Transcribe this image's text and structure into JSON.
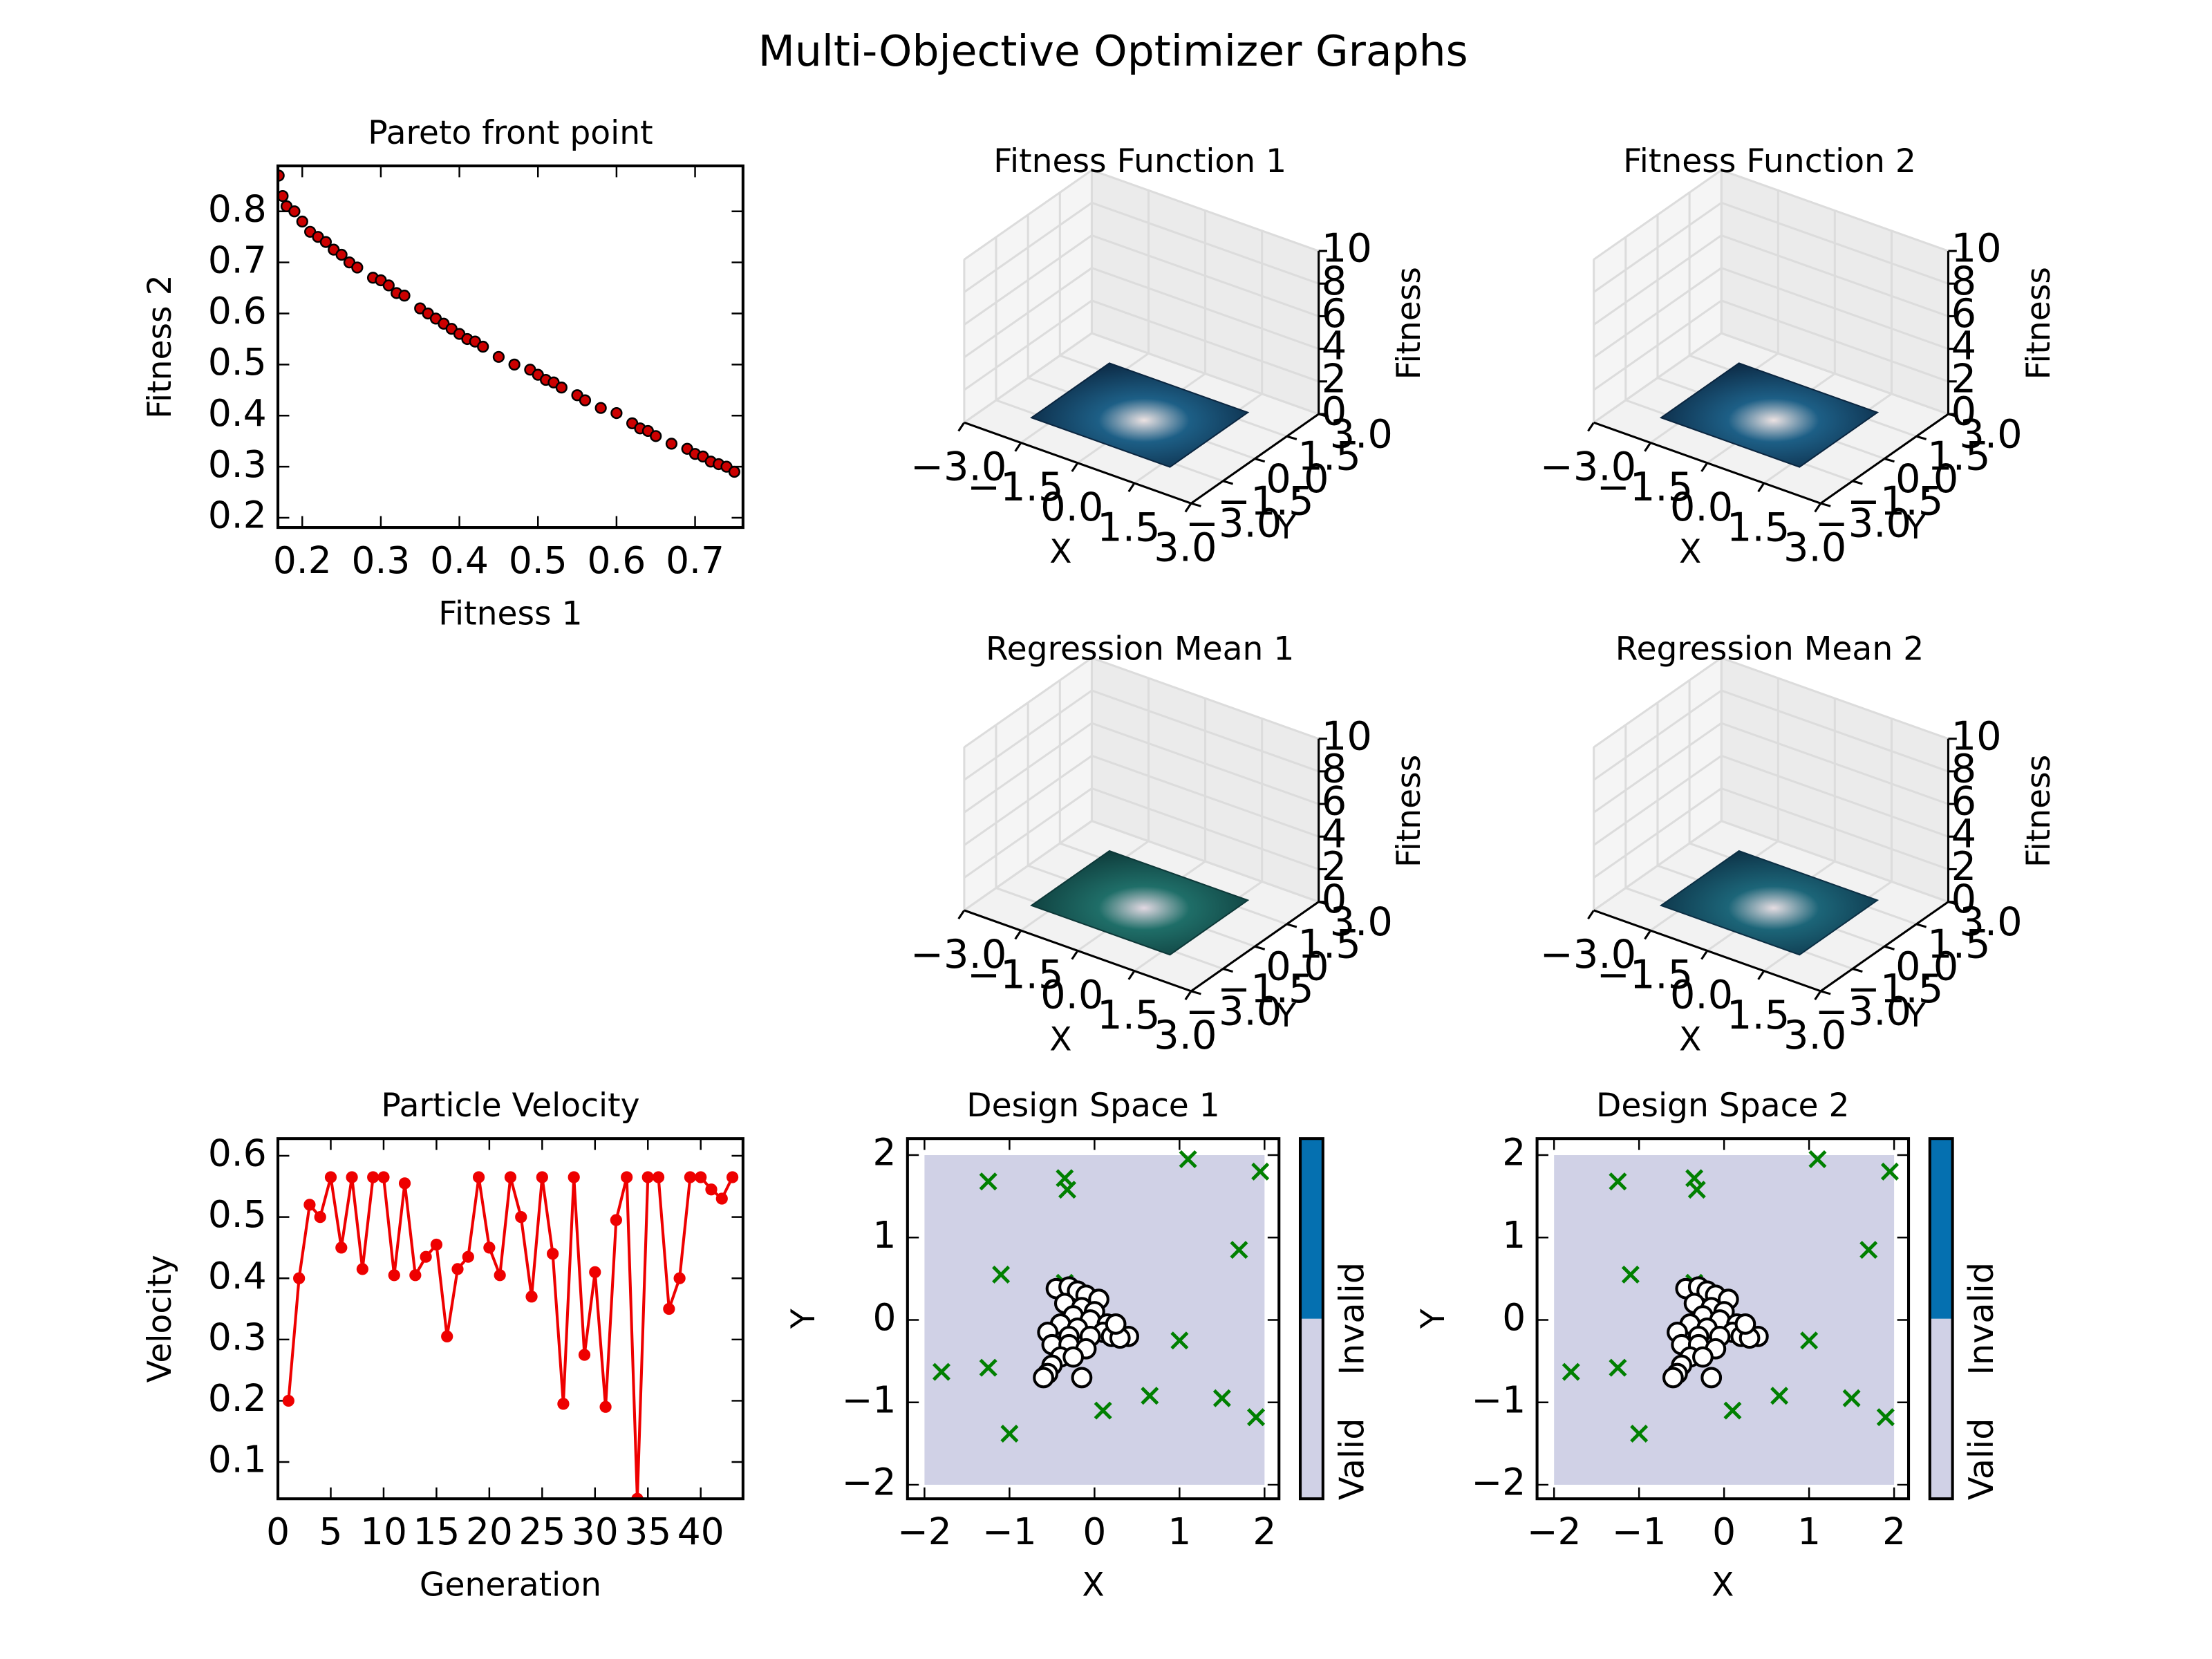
{
  "title": "Multi-Objective Optimizer Graphs",
  "chart_data": [
    {
      "type": "scatter",
      "title": "Pareto front point",
      "xlabel": "Fitness 1",
      "ylabel": "Fitness 2",
      "color": "#cc0000",
      "x": [
        0.17,
        0.175,
        0.18,
        0.19,
        0.2,
        0.21,
        0.22,
        0.23,
        0.24,
        0.25,
        0.26,
        0.27,
        0.29,
        0.3,
        0.31,
        0.32,
        0.33,
        0.35,
        0.36,
        0.37,
        0.38,
        0.39,
        0.4,
        0.41,
        0.42,
        0.43,
        0.45,
        0.47,
        0.49,
        0.5,
        0.51,
        0.52,
        0.53,
        0.55,
        0.56,
        0.58,
        0.6,
        0.62,
        0.63,
        0.64,
        0.65,
        0.67,
        0.69,
        0.7,
        0.71,
        0.72,
        0.73,
        0.74,
        0.75
      ],
      "values": [
        0.87,
        0.83,
        0.81,
        0.8,
        0.78,
        0.76,
        0.75,
        0.74,
        0.725,
        0.715,
        0.7,
        0.69,
        0.67,
        0.665,
        0.655,
        0.64,
        0.635,
        0.61,
        0.6,
        0.59,
        0.58,
        0.57,
        0.56,
        0.55,
        0.545,
        0.535,
        0.515,
        0.5,
        0.49,
        0.48,
        0.47,
        0.465,
        0.455,
        0.44,
        0.43,
        0.415,
        0.405,
        0.385,
        0.375,
        0.37,
        0.36,
        0.345,
        0.335,
        0.325,
        0.32,
        0.31,
        0.305,
        0.3,
        0.29
      ],
      "xlim": [
        0.169,
        0.761
      ],
      "ylim": [
        0.181,
        0.889
      ],
      "xticks": [
        0.2,
        0.3,
        0.4,
        0.5,
        0.6,
        0.7
      ],
      "yticks": [
        0.2,
        0.3,
        0.4,
        0.5,
        0.6,
        0.7,
        0.8
      ]
    },
    {
      "type": "surface3d",
      "title": "Fitness Function 1",
      "xlabel": "X",
      "ylabel": "Y",
      "zlabel": "Fitness",
      "xlim": [
        -3,
        3
      ],
      "ylim": [
        -3,
        3
      ],
      "zlim": [
        0,
        10
      ],
      "xticks": [
        {
          "value": -3,
          "label": "−3.0"
        },
        {
          "value": -1.5,
          "label": "−1.5"
        },
        {
          "value": 0,
          "label": "0.0"
        },
        {
          "value": 1.5,
          "label": "1.5"
        },
        {
          "value": 3,
          "label": "3.0"
        }
      ],
      "yticks": [
        {
          "value": -3,
          "label": "−3.0"
        },
        {
          "value": -1.5,
          "label": "−1.5"
        },
        {
          "value": 0,
          "label": "0.0"
        },
        {
          "value": 1.5,
          "label": "1.5"
        },
        {
          "value": 3,
          "label": "3.0"
        }
      ],
      "zticks": [
        0,
        2,
        4,
        6,
        8,
        10
      ],
      "colors": [
        "#0b2640",
        "#1d5f86",
        "#ece2e2"
      ]
    },
    {
      "type": "surface3d",
      "title": "Fitness Function 2",
      "xlabel": "X",
      "ylabel": "Y",
      "zlabel": "Fitness",
      "xlim": [
        -3,
        3
      ],
      "ylim": [
        -3,
        3
      ],
      "zlim": [
        0,
        10
      ],
      "xticks": [
        {
          "value": -3,
          "label": "−3.0"
        },
        {
          "value": -1.5,
          "label": "−1.5"
        },
        {
          "value": 0,
          "label": "0.0"
        },
        {
          "value": 1.5,
          "label": "1.5"
        },
        {
          "value": 3,
          "label": "3.0"
        }
      ],
      "yticks": [
        {
          "value": -3,
          "label": "−3.0"
        },
        {
          "value": -1.5,
          "label": "−1.5"
        },
        {
          "value": 0,
          "label": "0.0"
        },
        {
          "value": 1.5,
          "label": "1.5"
        },
        {
          "value": 3,
          "label": "3.0"
        }
      ],
      "zticks": [
        0,
        2,
        4,
        6,
        8,
        10
      ],
      "colors": [
        "#0b2640",
        "#1d5f86",
        "#ece2e2"
      ]
    },
    {
      "type": "surface3d",
      "title": "Regression Mean 1",
      "xlabel": "X",
      "ylabel": "Y",
      "zlabel": "Fitness",
      "xlim": [
        -3,
        3
      ],
      "ylim": [
        -3,
        3
      ],
      "zlim": [
        0,
        10
      ],
      "xticks": [
        {
          "value": -3,
          "label": "−3.0"
        },
        {
          "value": -1.5,
          "label": "−1.5"
        },
        {
          "value": 0,
          "label": "0.0"
        },
        {
          "value": 1.5,
          "label": "1.5"
        },
        {
          "value": 3,
          "label": "3.0"
        }
      ],
      "yticks": [
        {
          "value": -3,
          "label": "−3.0"
        },
        {
          "value": -1.5,
          "label": "−1.5"
        },
        {
          "value": 0,
          "label": "0.0"
        },
        {
          "value": 1.5,
          "label": "1.5"
        },
        {
          "value": 3,
          "label": "3.0"
        }
      ],
      "zticks": [
        0,
        2,
        4,
        6,
        8,
        10
      ],
      "colors": [
        "#0d3838",
        "#1f6e68",
        "#e2d8e2"
      ]
    },
    {
      "type": "surface3d",
      "title": "Regression Mean 2",
      "xlabel": "X",
      "ylabel": "Y",
      "zlabel": "Fitness",
      "xlim": [
        -3,
        3
      ],
      "ylim": [
        -3,
        3
      ],
      "zlim": [
        0,
        10
      ],
      "xticks": [
        {
          "value": -3,
          "label": "−3.0"
        },
        {
          "value": -1.5,
          "label": "−1.5"
        },
        {
          "value": 0,
          "label": "0.0"
        },
        {
          "value": 1.5,
          "label": "1.5"
        },
        {
          "value": 3,
          "label": "3.0"
        }
      ],
      "yticks": [
        {
          "value": -3,
          "label": "−3.0"
        },
        {
          "value": -1.5,
          "label": "−1.5"
        },
        {
          "value": 0,
          "label": "0.0"
        },
        {
          "value": 1.5,
          "label": "1.5"
        },
        {
          "value": 3,
          "label": "3.0"
        }
      ],
      "zticks": [
        0,
        2,
        4,
        6,
        8,
        10
      ],
      "colors": [
        "#0c2f44",
        "#1c6578",
        "#e6dde2"
      ]
    },
    {
      "type": "line",
      "title": "Particle Velocity",
      "xlabel": "Generation",
      "ylabel": "Velocity",
      "color": "#ee0000",
      "x": [
        1,
        2,
        3,
        4,
        5,
        6,
        7,
        8,
        9,
        10,
        11,
        12,
        13,
        14,
        15,
        16,
        17,
        18,
        19,
        20,
        21,
        22,
        23,
        24,
        25,
        26,
        27,
        28,
        29,
        30,
        31,
        32,
        33,
        34,
        35,
        36,
        37,
        38,
        39,
        40,
        41,
        42,
        43
      ],
      "values": [
        0.2,
        0.4,
        0.52,
        0.5,
        0.565,
        0.45,
        0.565,
        0.415,
        0.565,
        0.565,
        0.405,
        0.555,
        0.405,
        0.435,
        0.455,
        0.305,
        0.415,
        0.435,
        0.565,
        0.45,
        0.405,
        0.565,
        0.5,
        0.37,
        0.565,
        0.44,
        0.195,
        0.565,
        0.275,
        0.41,
        0.19,
        0.495,
        0.565,
        0.04,
        0.565,
        0.565,
        0.35,
        0.4,
        0.565,
        0.565,
        0.545,
        0.53,
        0.565
      ],
      "xlim": [
        0,
        44
      ],
      "ylim": [
        0.04,
        0.628
      ],
      "xticks": [
        0,
        5,
        10,
        15,
        20,
        25,
        30,
        35,
        40
      ],
      "yticks": [
        0.1,
        0.2,
        0.3,
        0.4,
        0.5,
        0.6
      ]
    },
    {
      "type": "design",
      "title": "Design Space 1",
      "xlabel": "X",
      "ylabel": "Y",
      "xlim": [
        -2.2,
        2.17
      ],
      "ylim": [
        -2.17,
        2.2
      ],
      "xticks": [
        {
          "value": -2,
          "label": "−2"
        },
        {
          "value": -1,
          "label": "−1"
        },
        0,
        1,
        2
      ],
      "yticks": [
        {
          "value": -2,
          "label": "−2"
        },
        {
          "value": -1,
          "label": "−1"
        },
        0,
        1,
        2
      ],
      "region": {
        "x": [
          -2,
          2
        ],
        "y": [
          -2,
          2
        ],
        "color": "#d0d1e6"
      },
      "series": [
        {
          "marker": "x",
          "color": "#008000",
          "x": [
            -1.25,
            -0.35,
            -0.32,
            1.1,
            1.95,
            1.7,
            -1.1,
            -1.8,
            -1.25,
            -1.0,
            0.1,
            0.65,
            1.5,
            1.9,
            1.0,
            -0.35,
            0.2
          ],
          "values": [
            1.68,
            1.72,
            1.58,
            1.95,
            1.8,
            0.85,
            0.55,
            -0.63,
            -0.58,
            -1.38,
            -1.1,
            -0.92,
            -0.95,
            -1.18,
            -0.25,
            0.45,
            -0.1
          ]
        },
        {
          "marker": "circle",
          "color": "#ffffff",
          "x": [
            -0.45,
            -0.3,
            -0.2,
            -0.1,
            0.05,
            -0.35,
            -0.15,
            0.0,
            -0.25,
            -0.05,
            0.15,
            -0.4,
            -0.2,
            0.1,
            -0.55,
            -0.3,
            -0.05,
            0.2,
            0.4,
            -0.5,
            -0.3,
            -0.1,
            -0.4,
            -0.25,
            -0.5,
            -0.55,
            -0.15,
            0.3,
            -0.6,
            0.25
          ],
          "values": [
            0.38,
            0.4,
            0.35,
            0.3,
            0.25,
            0.2,
            0.15,
            0.1,
            0.05,
            0.0,
            -0.05,
            -0.05,
            -0.1,
            -0.15,
            -0.15,
            -0.2,
            -0.2,
            -0.2,
            -0.2,
            -0.3,
            -0.3,
            -0.35,
            -0.45,
            -0.45,
            -0.55,
            -0.65,
            -0.7,
            -0.22,
            -0.7,
            -0.05
          ]
        }
      ],
      "colorbar": {
        "labels": [
          "Valid",
          "Invalid"
        ],
        "colors": [
          "#d0d1e6",
          "#0570b0"
        ]
      }
    },
    {
      "type": "design",
      "title": "Design Space 2",
      "xlabel": "X",
      "ylabel": "Y",
      "xlim": [
        -2.2,
        2.17
      ],
      "ylim": [
        -2.17,
        2.2
      ],
      "xticks": [
        {
          "value": -2,
          "label": "−2"
        },
        {
          "value": -1,
          "label": "−1"
        },
        0,
        1,
        2
      ],
      "yticks": [
        {
          "value": -2,
          "label": "−2"
        },
        {
          "value": -1,
          "label": "−1"
        },
        0,
        1,
        2
      ],
      "region": {
        "x": [
          -2,
          2
        ],
        "y": [
          -2,
          2
        ],
        "color": "#d0d1e6"
      },
      "series": [
        {
          "marker": "x",
          "color": "#008000",
          "x": [
            -1.25,
            -0.35,
            -0.32,
            1.1,
            1.95,
            1.7,
            -1.1,
            -1.8,
            -1.25,
            -1.0,
            0.1,
            0.65,
            1.5,
            1.9,
            1.0,
            -0.35,
            0.2
          ],
          "values": [
            1.68,
            1.72,
            1.58,
            1.95,
            1.8,
            0.85,
            0.55,
            -0.63,
            -0.58,
            -1.38,
            -1.1,
            -0.92,
            -0.95,
            -1.18,
            -0.25,
            0.45,
            -0.1
          ]
        },
        {
          "marker": "circle",
          "color": "#ffffff",
          "x": [
            -0.45,
            -0.3,
            -0.2,
            -0.1,
            0.05,
            -0.35,
            -0.15,
            0.0,
            -0.25,
            -0.05,
            0.15,
            -0.4,
            -0.2,
            0.1,
            -0.55,
            -0.3,
            -0.05,
            0.2,
            0.4,
            -0.5,
            -0.3,
            -0.1,
            -0.4,
            -0.25,
            -0.5,
            -0.55,
            -0.15,
            0.3,
            -0.6,
            0.25
          ],
          "values": [
            0.38,
            0.4,
            0.35,
            0.3,
            0.25,
            0.2,
            0.15,
            0.1,
            0.05,
            0.0,
            -0.05,
            -0.05,
            -0.1,
            -0.15,
            -0.15,
            -0.2,
            -0.2,
            -0.2,
            -0.2,
            -0.3,
            -0.3,
            -0.35,
            -0.45,
            -0.45,
            -0.55,
            -0.65,
            -0.7,
            -0.22,
            -0.7,
            -0.05
          ]
        }
      ],
      "colorbar": {
        "labels": [
          "Valid",
          "Invalid"
        ],
        "colors": [
          "#d0d1e6",
          "#0570b0"
        ]
      }
    }
  ]
}
